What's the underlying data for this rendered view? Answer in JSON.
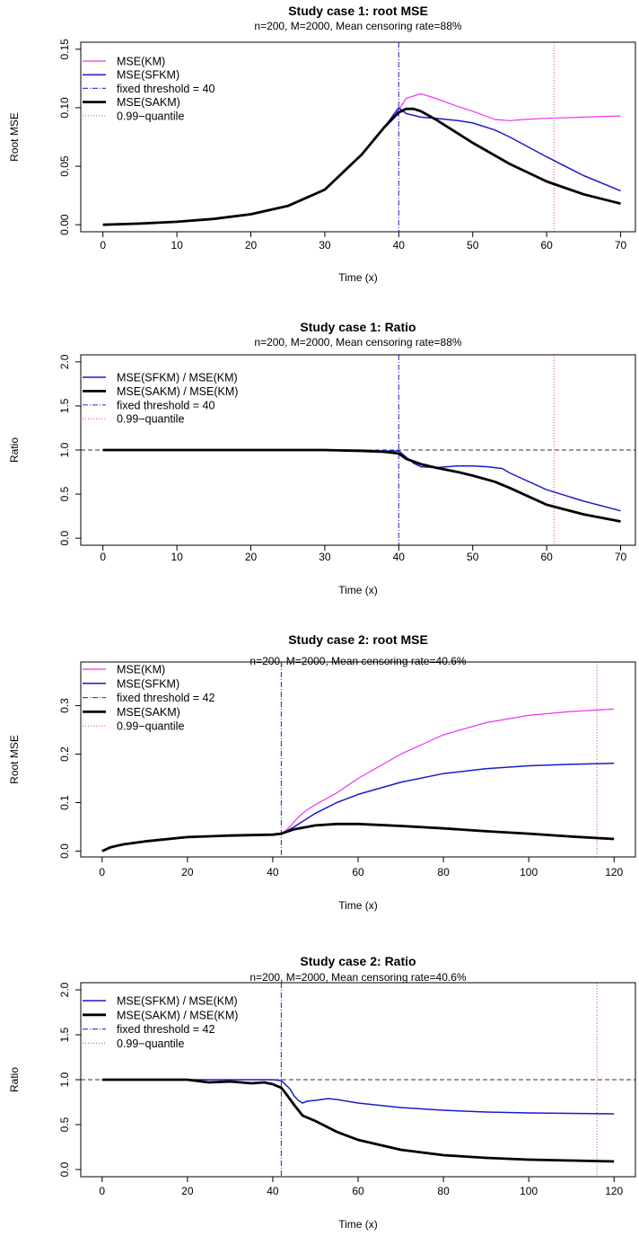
{
  "colors": {
    "km": "#ee33ee",
    "sfkm": "#1a1acc",
    "sakm": "#000000",
    "threshold": "#4444cc",
    "quantile": "#ee6677",
    "reference": "#333333"
  },
  "chart_data": [
    {
      "type": "line",
      "title": "Study case 1:  root MSE",
      "subtitle": "n=200,  M=2000,  Mean censoring rate=88%",
      "xlabel": "Time (x)",
      "ylabel": "Root MSE",
      "xlim": [
        -3,
        72
      ],
      "ylim": [
        -0.006,
        0.156
      ],
      "xticks": [
        0,
        10,
        20,
        30,
        40,
        50,
        60,
        70
      ],
      "yticks": [
        0,
        0.05,
        0.1,
        0.15
      ],
      "ytick_labels": [
        "0.00",
        "0.05",
        "0.10",
        "0.15"
      ],
      "threshold": 40,
      "quantile": 61,
      "reference_line": null,
      "legend_position": "top-left",
      "legend": [
        {
          "label": "MSE(KM)",
          "style": "km"
        },
        {
          "label": "MSE(SFKM)",
          "style": "sfkm"
        },
        {
          "label": "fixed threshold = 40",
          "style": "threshold"
        },
        {
          "label": "MSE(SAKM)",
          "style": "sakm"
        },
        {
          "label": "0.99−quantile",
          "style": "quantile"
        }
      ],
      "series": [
        {
          "name": "MSE(KM)",
          "style": "km",
          "x": [
            0,
            5,
            10,
            15,
            20,
            25,
            30,
            35,
            38,
            40,
            41,
            43,
            45,
            48,
            50,
            53,
            55,
            57,
            60,
            65,
            70
          ],
          "y": [
            0,
            0.001,
            0.0025,
            0.005,
            0.009,
            0.016,
            0.03,
            0.06,
            0.083,
            0.098,
            0.108,
            0.112,
            0.108,
            0.101,
            0.097,
            0.09,
            0.089,
            0.09,
            0.091,
            0.092,
            0.093
          ]
        },
        {
          "name": "MSE(SFKM)",
          "style": "sfkm",
          "x": [
            0,
            5,
            10,
            15,
            20,
            25,
            30,
            35,
            38,
            40,
            41,
            43,
            45,
            48,
            50,
            53,
            55,
            60,
            65,
            70
          ],
          "y": [
            0,
            0.001,
            0.0025,
            0.005,
            0.009,
            0.016,
            0.03,
            0.06,
            0.083,
            0.1,
            0.095,
            0.092,
            0.091,
            0.089,
            0.087,
            0.081,
            0.075,
            0.058,
            0.042,
            0.029
          ]
        },
        {
          "name": "MSE(SAKM)",
          "style": "sakm",
          "x": [
            0,
            5,
            10,
            15,
            20,
            25,
            30,
            35,
            38,
            40,
            41,
            42,
            43,
            45,
            48,
            50,
            55,
            60,
            65,
            70
          ],
          "y": [
            0,
            0.001,
            0.0025,
            0.005,
            0.009,
            0.016,
            0.03,
            0.06,
            0.083,
            0.096,
            0.099,
            0.099,
            0.097,
            0.09,
            0.078,
            0.07,
            0.052,
            0.037,
            0.026,
            0.018
          ]
        }
      ]
    },
    {
      "type": "line",
      "title": "Study case 1:  Ratio",
      "subtitle": "n=200,  M=2000,  Mean censoring rate=88%",
      "xlabel": "Time (x)",
      "ylabel": "Ratio",
      "xlim": [
        -3,
        72
      ],
      "ylim": [
        -0.08,
        2.08
      ],
      "xticks": [
        0,
        10,
        20,
        30,
        40,
        50,
        60,
        70
      ],
      "yticks": [
        0,
        0.5,
        1,
        1.5,
        2
      ],
      "ytick_labels": [
        "0.0",
        "0.5",
        "1.0",
        "1.5",
        "2.0"
      ],
      "threshold": 40,
      "quantile": 61,
      "reference_line": 1,
      "legend_position": "top-left",
      "legend": [
        {
          "label": "MSE(SFKM) / MSE(KM)",
          "style": "sfkm"
        },
        {
          "label": "MSE(SAKM) / MSE(KM)",
          "style": "sakm"
        },
        {
          "label": "fixed threshold = 40",
          "style": "threshold"
        },
        {
          "label": "0.99−quantile",
          "style": "quantile"
        }
      ],
      "series": [
        {
          "name": "MSE(SFKM) / MSE(KM)",
          "style": "sfkm",
          "x": [
            0,
            10,
            20,
            30,
            35,
            38,
            40,
            41,
            42,
            43,
            45,
            48,
            50,
            52,
            54,
            55,
            60,
            65,
            70
          ],
          "y": [
            1,
            1,
            1,
            1,
            1,
            0.99,
            0.99,
            0.92,
            0.85,
            0.81,
            0.8,
            0.82,
            0.82,
            0.81,
            0.79,
            0.74,
            0.55,
            0.42,
            0.31
          ]
        },
        {
          "name": "MSE(SAKM) / MSE(KM)",
          "style": "sakm",
          "x": [
            0,
            10,
            20,
            30,
            35,
            38,
            39,
            40,
            41,
            43,
            45,
            48,
            50,
            53,
            55,
            60,
            65,
            70
          ],
          "y": [
            1,
            1,
            1,
            1,
            0.99,
            0.98,
            0.97,
            0.96,
            0.9,
            0.84,
            0.8,
            0.75,
            0.71,
            0.64,
            0.57,
            0.38,
            0.27,
            0.19
          ]
        }
      ]
    },
    {
      "type": "line",
      "title": "Study case 2:  root MSE",
      "subtitle": "n=200,  M=2000,  Mean censoring rate=40.6%",
      "xlabel": "Time (x)",
      "ylabel": "Root MSE",
      "xlim": [
        -5,
        125
      ],
      "ylim": [
        -0.012,
        0.39
      ],
      "xticks": [
        0,
        20,
        40,
        60,
        80,
        100,
        120
      ],
      "yticks": [
        0,
        0.1,
        0.2,
        0.3
      ],
      "ytick_labels": [
        "0.0",
        "0.1",
        "0.2",
        "0.3"
      ],
      "threshold": 42,
      "quantile": 116,
      "reference_line": null,
      "legend_position": "top-left",
      "legend": [
        {
          "label": "MSE(KM)",
          "style": "km"
        },
        {
          "label": "MSE(SFKM)",
          "style": "sfkm"
        },
        {
          "label": "fixed threshold = 42",
          "style": "threshold"
        },
        {
          "label": "MSE(SAKM)",
          "style": "sakm"
        },
        {
          "label": "0.99−quantile",
          "style": "quantile"
        }
      ],
      "series": [
        {
          "name": "MSE(KM)",
          "style": "km",
          "x": [
            0,
            2,
            5,
            10,
            20,
            30,
            40,
            42,
            44,
            46,
            48,
            50,
            55,
            60,
            70,
            80,
            90,
            100,
            110,
            120
          ],
          "y": [
            0,
            0.008,
            0.014,
            0.02,
            0.029,
            0.032,
            0.034,
            0.035,
            0.05,
            0.07,
            0.085,
            0.096,
            0.12,
            0.15,
            0.2,
            0.24,
            0.265,
            0.28,
            0.288,
            0.293
          ]
        },
        {
          "name": "MSE(SFKM)",
          "style": "sfkm",
          "x": [
            0,
            2,
            5,
            10,
            20,
            30,
            40,
            42,
            45,
            50,
            55,
            60,
            70,
            80,
            90,
            100,
            110,
            120
          ],
          "y": [
            0,
            0.008,
            0.014,
            0.02,
            0.029,
            0.032,
            0.034,
            0.035,
            0.05,
            0.078,
            0.1,
            0.117,
            0.142,
            0.16,
            0.17,
            0.176,
            0.179,
            0.181
          ]
        },
        {
          "name": "MSE(SAKM)",
          "style": "sakm",
          "x": [
            0,
            2,
            5,
            10,
            20,
            30,
            40,
            42,
            45,
            50,
            55,
            60,
            70,
            80,
            90,
            100,
            110,
            120
          ],
          "y": [
            0,
            0.008,
            0.014,
            0.02,
            0.029,
            0.032,
            0.034,
            0.036,
            0.045,
            0.053,
            0.056,
            0.056,
            0.052,
            0.047,
            0.041,
            0.036,
            0.03,
            0.025
          ]
        }
      ]
    },
    {
      "type": "line",
      "title": "Study case 2:  Ratio",
      "subtitle": "n=200,  M=2000,  Mean censoring rate=40.6%",
      "xlabel": "Time (x)",
      "ylabel": "Ratio",
      "xlim": [
        -5,
        125
      ],
      "ylim": [
        -0.08,
        2.08
      ],
      "xticks": [
        0,
        20,
        40,
        60,
        80,
        100,
        120
      ],
      "yticks": [
        0,
        0.5,
        1,
        1.5,
        2
      ],
      "ytick_labels": [
        "0.0",
        "0.5",
        "1.0",
        "1.5",
        "2.0"
      ],
      "threshold": 42,
      "quantile": 116,
      "reference_line": 1,
      "legend_position": "top-left",
      "legend": [
        {
          "label": "MSE(SFKM) / MSE(KM)",
          "style": "sfkm"
        },
        {
          "label": "MSE(SAKM) / MSE(KM)",
          "style": "sakm"
        },
        {
          "label": "fixed threshold = 42",
          "style": "threshold"
        },
        {
          "label": "0.99−quantile",
          "style": "quantile"
        }
      ],
      "series": [
        {
          "name": "MSE(SFKM) / MSE(KM)",
          "style": "sfkm",
          "x": [
            0,
            10,
            20,
            25,
            30,
            35,
            40,
            42,
            44,
            45,
            46,
            47,
            48,
            50,
            53,
            55,
            60,
            70,
            80,
            90,
            100,
            110,
            120
          ],
          "y": [
            1,
            1,
            1,
            1,
            1,
            1,
            1,
            0.99,
            0.9,
            0.82,
            0.77,
            0.74,
            0.76,
            0.77,
            0.79,
            0.78,
            0.74,
            0.69,
            0.66,
            0.64,
            0.63,
            0.625,
            0.62
          ]
        },
        {
          "name": "MSE(SAKM) / MSE(KM)",
          "style": "sakm",
          "x": [
            0,
            10,
            20,
            25,
            30,
            35,
            38,
            40,
            42,
            43,
            45,
            47,
            50,
            55,
            60,
            70,
            80,
            90,
            100,
            110,
            120
          ],
          "y": [
            1,
            1,
            1,
            0.97,
            0.98,
            0.96,
            0.97,
            0.95,
            0.91,
            0.85,
            0.72,
            0.6,
            0.54,
            0.42,
            0.33,
            0.22,
            0.16,
            0.13,
            0.11,
            0.1,
            0.09
          ]
        }
      ]
    }
  ]
}
